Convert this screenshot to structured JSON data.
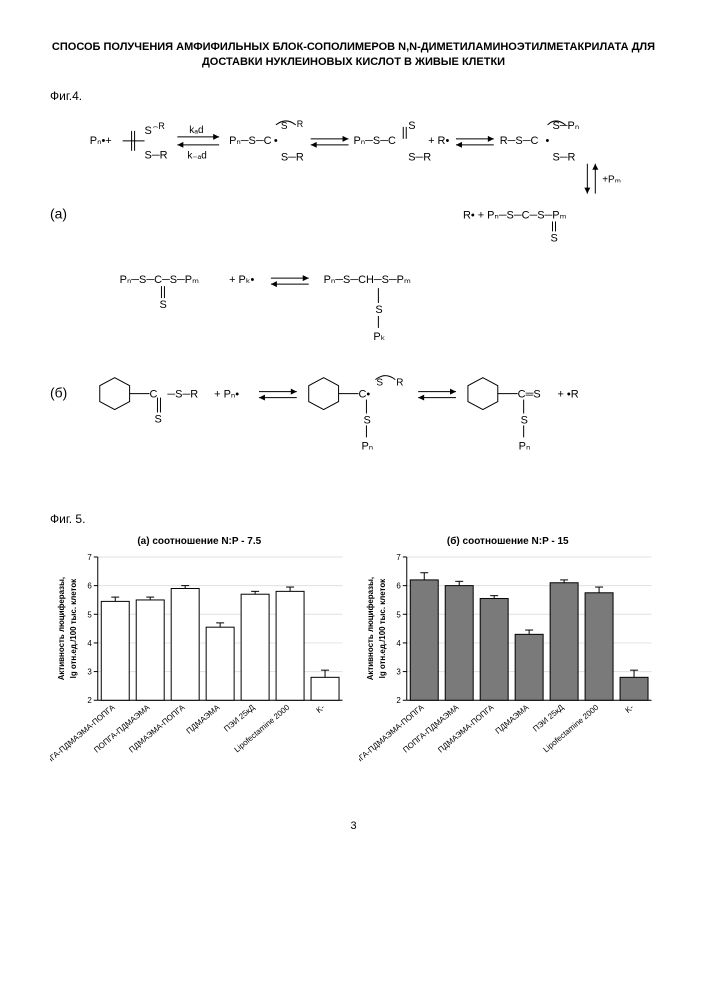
{
  "title": "СПОСОБ ПОЛУЧЕНИЯ АМФИФИЛЬНЫХ БЛОК-СОПОЛИМЕРОВ N,N-ДИМЕТИЛАМИНОЭТИЛМЕТАКРИЛАТА ДЛЯ ДОСТАВКИ НУКЛЕИНОВЫХ КИСЛОТ В ЖИВЫЕ КЛЕТКИ",
  "fig4_label": "Фиг.4.",
  "fig5_label": "Фиг. 5.",
  "diagram": {
    "panel_a_label": "(а)",
    "panel_b_label": "(б)",
    "labels": [
      "Pₙ",
      "Pₘ",
      "Pₖ",
      "R",
      "S",
      "C",
      "kₐd",
      "k₋ₐd",
      "+Pₘ",
      "R•"
    ],
    "colors": {
      "line": "#000000",
      "text": "#000000"
    },
    "fontsize": 11
  },
  "chart_a": {
    "type": "bar",
    "title": "(а) соотношение N:P - 7.5",
    "categories": [
      "ПОПГА-ПДМАЭМА-ПОПГА",
      "ПОПГА-ПДМАЭМА",
      "ПДМАЭМА-ПОПГА",
      "ПДМАЭМА",
      "ПЭИ 25кД",
      "Lipofectamine 2000",
      "K-"
    ],
    "values": [
      5.45,
      5.5,
      5.9,
      4.55,
      5.7,
      5.8,
      2.8
    ],
    "errors": [
      0.15,
      0.1,
      0.1,
      0.15,
      0.1,
      0.15,
      0.25
    ],
    "bar_fill": "#ffffff",
    "bar_stroke": "#000000",
    "bar_width": 0.8,
    "ylabel_line1": "Активность люциферазы,",
    "ylabel_line2": "lg отн.ед./100 тыс. клеток",
    "ylim": [
      2,
      7
    ],
    "ytick_step": 1,
    "label_fontsize": 8,
    "tick_fontsize": 8,
    "background": "#ffffff",
    "grid_color": "#e0e0e0"
  },
  "chart_b": {
    "type": "bar",
    "title": "(б) соотношение N:P - 15",
    "categories": [
      "ПОПГА-ПДМАЭМА-ПОПГА",
      "ПОПГА-ПДМАЭМА",
      "ПДМАЭМА-ПОПГА",
      "ПДМАЭМА",
      "ПЭИ 25кД",
      "Lipofectamine 2000",
      "K-"
    ],
    "values": [
      6.2,
      6.0,
      5.55,
      4.3,
      6.1,
      5.75,
      2.8
    ],
    "errors": [
      0.25,
      0.15,
      0.1,
      0.15,
      0.1,
      0.2,
      0.25
    ],
    "bar_fill": "#7a7a7a",
    "bar_stroke": "#000000",
    "bar_width": 0.8,
    "ylabel_line1": "Активность люциферазы,",
    "ylabel_line2": "lg отн.ед./100 тыс. клеток",
    "ylim": [
      2,
      7
    ],
    "ytick_step": 1,
    "label_fontsize": 8,
    "tick_fontsize": 8,
    "background": "#ffffff",
    "grid_color": "#e0e0e0"
  },
  "page_number": "3"
}
